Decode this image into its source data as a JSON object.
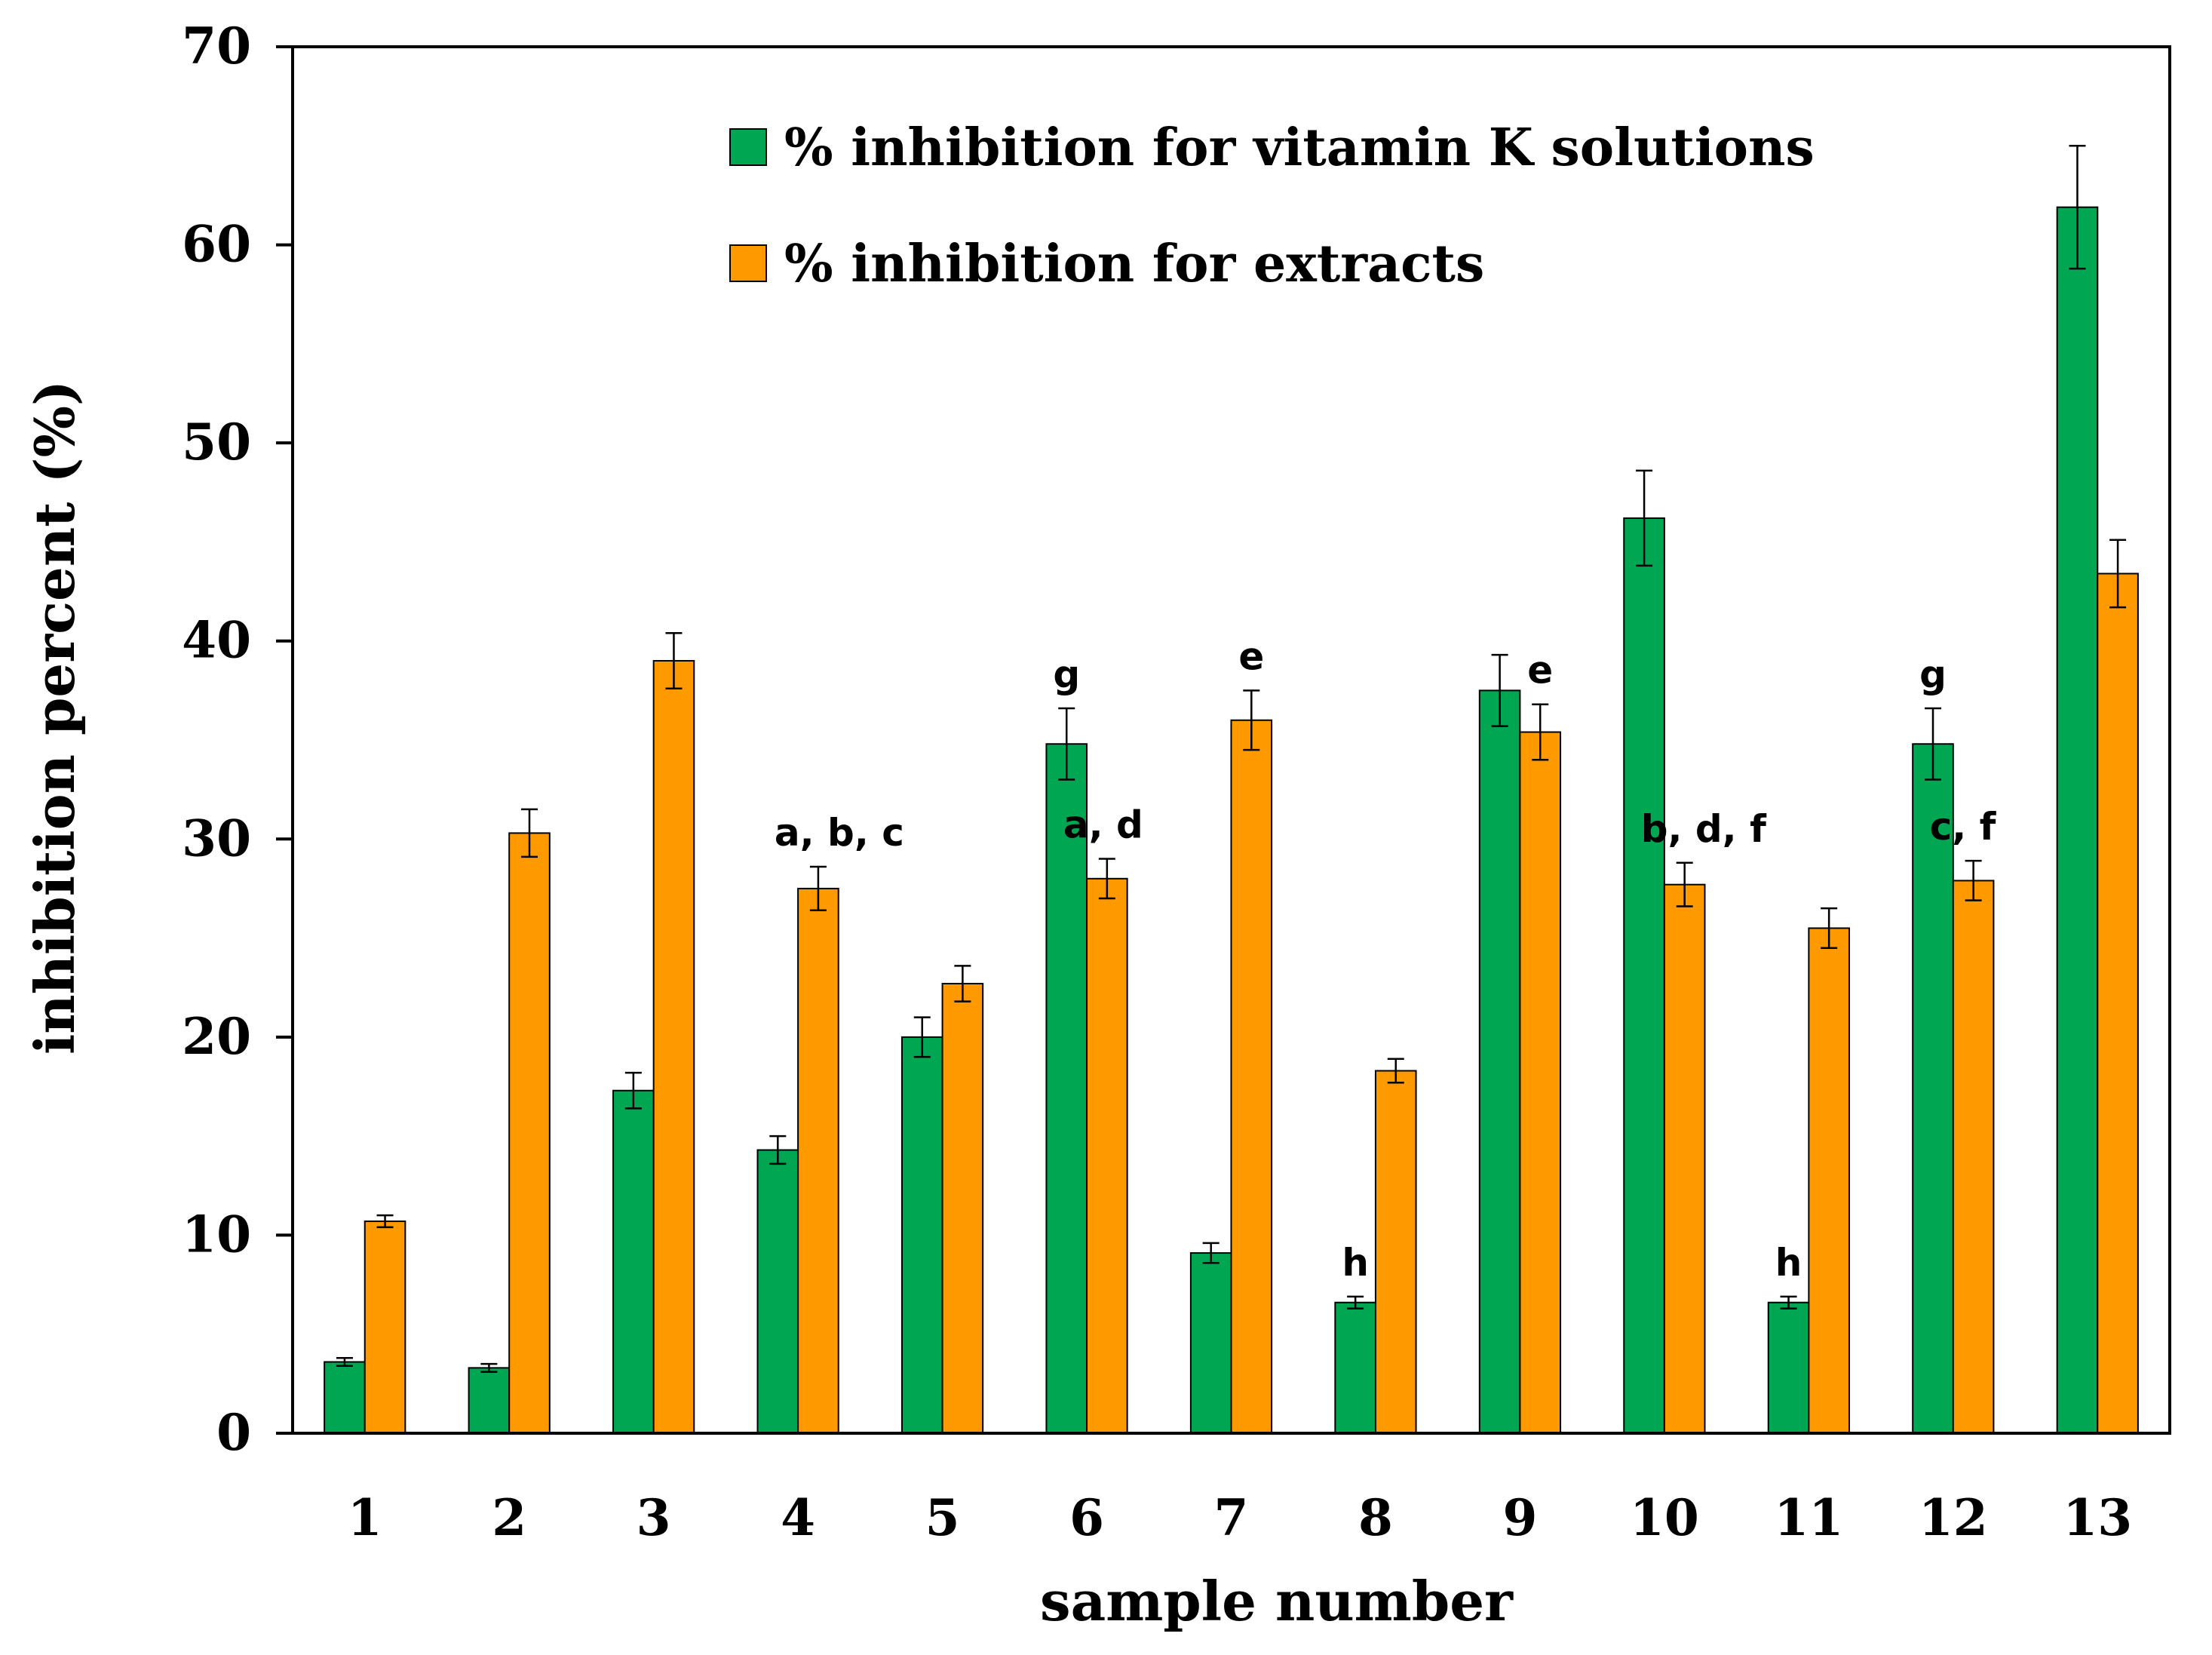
{
  "chart_data": {
    "type": "bar",
    "title": "",
    "xlabel": "sample number",
    "ylabel": "inhibition percent (%)",
    "ylim": [
      0,
      70
    ],
    "yticks": [
      0,
      10,
      20,
      30,
      40,
      50,
      60,
      70
    ],
    "categories": [
      "1",
      "2",
      "3",
      "4",
      "5",
      "6",
      "7",
      "8",
      "9",
      "10",
      "11",
      "12",
      "13"
    ],
    "grid": false,
    "legend_position": "top-center",
    "series": [
      {
        "name": "% inhibition for vitamin K solutions",
        "color": "#00a651",
        "values": [
          3.6,
          3.3,
          17.3,
          14.3,
          20.0,
          34.8,
          9.1,
          6.6,
          37.5,
          46.2,
          6.6,
          34.8,
          61.9
        ],
        "errors": [
          0.2,
          0.2,
          0.9,
          0.7,
          1.0,
          1.8,
          0.5,
          0.3,
          1.8,
          2.4,
          0.3,
          1.8,
          3.1
        ]
      },
      {
        "name": "% inhibition for extracts",
        "color": "#ff9900",
        "values": [
          10.7,
          30.3,
          39.0,
          27.5,
          22.7,
          28.0,
          36.0,
          18.3,
          35.4,
          27.7,
          25.5,
          27.9,
          43.4
        ],
        "errors": [
          0.3,
          1.2,
          1.4,
          1.1,
          0.9,
          1.0,
          1.5,
          0.6,
          1.4,
          1.1,
          1.0,
          1.0,
          1.7
        ]
      }
    ],
    "annotations": [
      {
        "category": "4",
        "series": 1,
        "text": "a, b, c"
      },
      {
        "category": "6",
        "series": 0,
        "text": "g"
      },
      {
        "category": "6",
        "series": 1,
        "text": "a, d"
      },
      {
        "category": "7",
        "series": 1,
        "text": "e"
      },
      {
        "category": "8",
        "series": 0,
        "text": "h"
      },
      {
        "category": "9",
        "series": 1,
        "text": "e"
      },
      {
        "category": "10",
        "series": 1,
        "text": "b, d, f"
      },
      {
        "category": "11",
        "series": 0,
        "text": "h"
      },
      {
        "category": "12",
        "series": 0,
        "text": "g"
      },
      {
        "category": "12",
        "series": 1,
        "text": "c, f"
      }
    ]
  }
}
